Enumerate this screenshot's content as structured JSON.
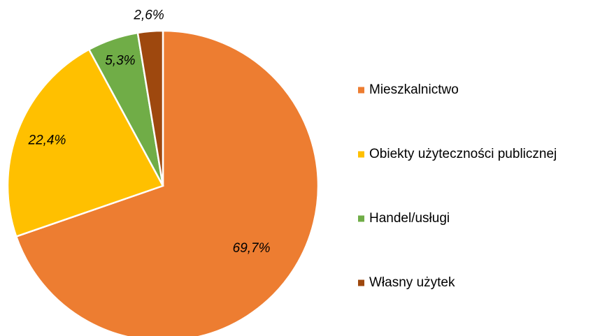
{
  "chart_data": {
    "type": "pie",
    "categories": [
      "Mieszkalnictwo",
      "Obiekty użyteczności publicznej",
      "Handel/usługi",
      "Własny użytek"
    ],
    "values": [
      69.7,
      22.4,
      5.3,
      2.6
    ],
    "value_labels": [
      "69,7%",
      "22,4%",
      "5,3%",
      "2,6%"
    ],
    "colors": [
      "#ED7D31",
      "#FFC000",
      "#70AD47",
      "#9E480E"
    ],
    "legend": "right"
  }
}
